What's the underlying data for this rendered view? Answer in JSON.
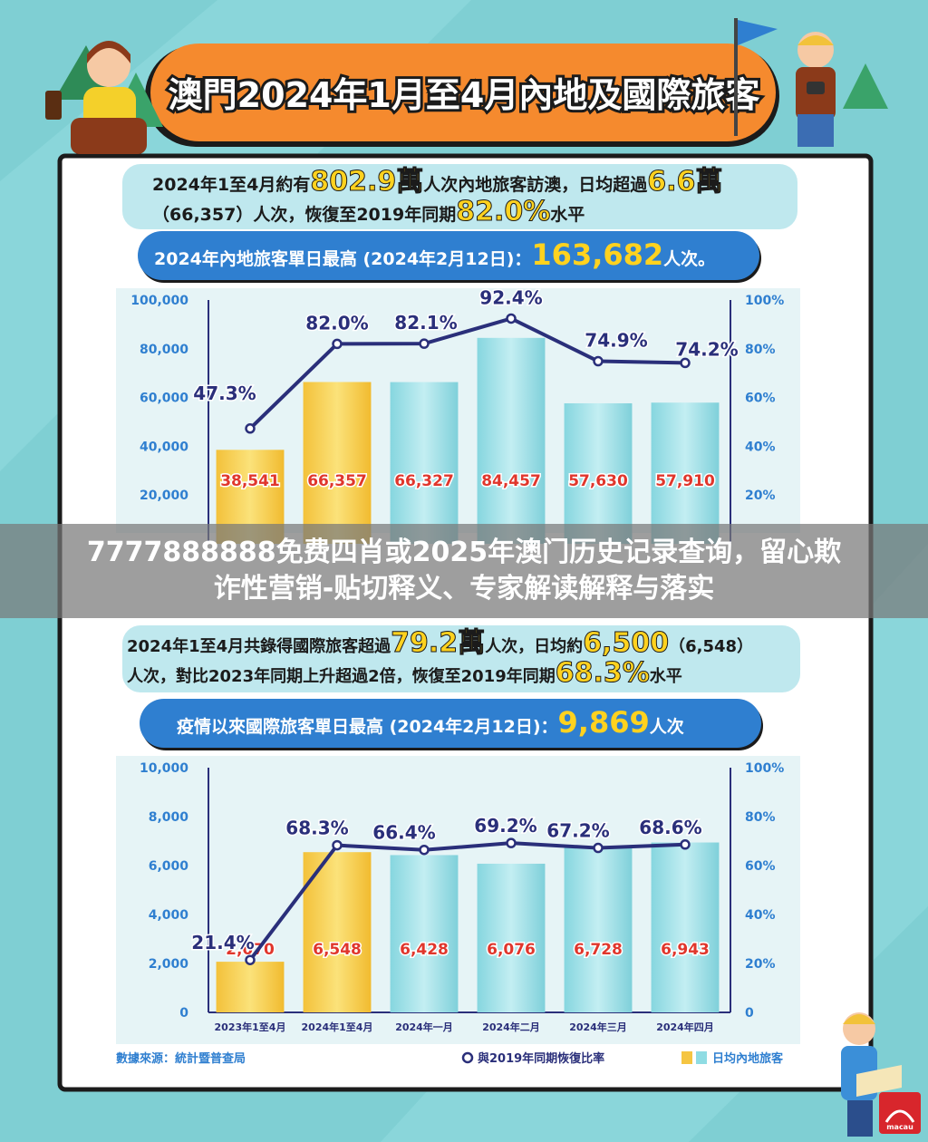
{
  "header": {
    "title": "澳門2024年1月至4月內地及國際旅客"
  },
  "mainland": {
    "summary_l1_a": "2024年1至4月約有",
    "summary_l1_b": "802.9萬",
    "summary_l1_c": "人次內地旅客訪澳，日均超過",
    "summary_l1_d": "6.6萬",
    "summary_l2_a": "（66,357）人次，恢復至2019年同期",
    "summary_l2_b": "82.0%",
    "summary_l2_c": "水平",
    "peak_a": "2024年內地旅客單日最高 (2024年2月12日)：",
    "peak_b": "163,682",
    "peak_c": "人次。"
  },
  "overlay": {
    "line1": "7777888888免费四肖或2025年澳门历史记录查询，留心欺",
    "line2": "诈性营销-贴切释义、专家解读解释与落实"
  },
  "intl": {
    "summary_l1_a": "2024年1至4月共錄得國際旅客超過",
    "summary_l1_b": "79.2萬",
    "summary_l1_c": "人次，日均約",
    "summary_l1_d": "6,500",
    "summary_l1_e": "（6,548）",
    "summary_l2_a": "人次，對比2023年同期上升超過2倍，恢復至2019年同期",
    "summary_l2_b": "68.3%",
    "summary_l2_c": "水平",
    "peak_a": "疫情以來國際旅客單日最高 (2024年2月12日)：",
    "peak_b": "9,869",
    "peak_c": "人次"
  },
  "footer": {
    "source": "數據來源：統計暨普查局",
    "legend_line": "與2019年同期恢復比率",
    "legend_bar": "日均內地旅客",
    "logo_text": "macau"
  },
  "colors": {
    "background": "#7fcfd3",
    "header_orange": "#f58a2e",
    "banner_blue": "#2f7fd0",
    "line_navy": "#2a2f7a",
    "bar_yellow": "#f5c542",
    "bar_teal": "#8fdce3",
    "label_red": "#e0362c",
    "highlight_yellow": "#ffd21f"
  },
  "chart_data": [
    {
      "type": "bar",
      "categories": [
        "",
        "",
        "",
        "",
        "",
        ""
      ],
      "series": [
        {
          "name": "日均內地旅客",
          "values": [
            38541,
            66357,
            66327,
            84457,
            57630,
            57910
          ]
        },
        {
          "name": "與2019年同期恢復比率",
          "type": "line",
          "values": [
            47.3,
            82.0,
            82.1,
            92.4,
            74.9,
            74.2
          ]
        }
      ],
      "bar_labels": [
        "38,541",
        "66,357",
        "66,327",
        "84,457",
        "57,630",
        "57,910"
      ],
      "line_labels": [
        "47.3%",
        "82.0%",
        "82.1%",
        "92.4%",
        "74.9%",
        "74.2%"
      ],
      "left_ticks": [
        "100,000",
        "80,000",
        "60,000",
        "40,000",
        "20,000"
      ],
      "right_ticks": [
        "100%",
        "80%",
        "60%",
        "40%",
        "20%"
      ],
      "ylim": [
        0,
        100000
      ],
      "y2lim": [
        0,
        100
      ]
    },
    {
      "type": "bar",
      "categories": [
        "2023年1至4月",
        "2024年1至4月",
        "2024年一月",
        "2024年二月",
        "2024年三月",
        "2024年四月"
      ],
      "series": [
        {
          "name": "日均內地旅客",
          "values": [
            2070,
            6548,
            6428,
            6076,
            6728,
            6943
          ]
        },
        {
          "name": "與2019年同期恢復比率",
          "type": "line",
          "values": [
            21.4,
            68.3,
            66.4,
            69.2,
            67.2,
            68.6
          ]
        }
      ],
      "bar_labels": [
        "2,070",
        "6,548",
        "6,428",
        "6,076",
        "6,728",
        "6,943"
      ],
      "line_labels": [
        "21.4%",
        "68.3%",
        "66.4%",
        "69.2%",
        "67.2%",
        "68.6%"
      ],
      "left_ticks": [
        "10,000",
        "8,000",
        "6,000",
        "4,000",
        "2,000",
        "0"
      ],
      "right_ticks": [
        "100%",
        "80%",
        "60%",
        "40%",
        "20%",
        "0"
      ],
      "ylim": [
        0,
        10000
      ],
      "y2lim": [
        0,
        100
      ]
    }
  ]
}
